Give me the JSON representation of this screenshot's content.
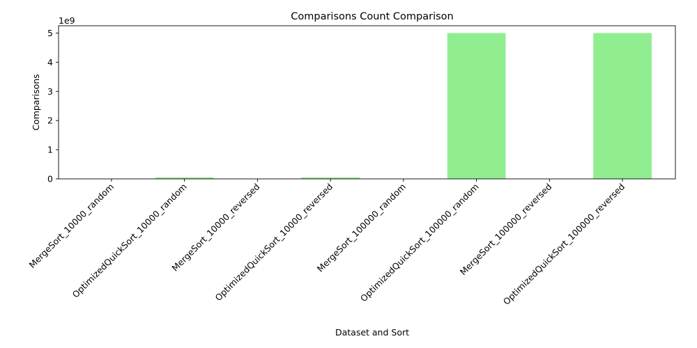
{
  "chart_data": {
    "type": "bar",
    "title": "Comparisons Count Comparison",
    "xlabel": "Dataset and Sort",
    "ylabel": "Comparisons",
    "offset_text": "1e9",
    "categories": [
      "MergeSort_10000_random",
      "OptimizedQuickSort_10000_random",
      "MergeSort_10000_reversed",
      "OptimizedQuickSort_10000_reversed",
      "MergeSort_100000_random",
      "OptimizedQuickSort_100000_random",
      "MergeSort_100000_reversed",
      "OptimizedQuickSort_100000_reversed"
    ],
    "values": [
      120000,
      50000000,
      70000,
      50000000,
      1500000,
      5000000000,
      850000,
      5000000000
    ],
    "y_ticks": [
      0,
      1,
      2,
      3,
      4,
      5
    ],
    "ylim": [
      0,
      5.25
    ],
    "bar_color": "#90ee90",
    "grid": false,
    "legend": "none"
  }
}
